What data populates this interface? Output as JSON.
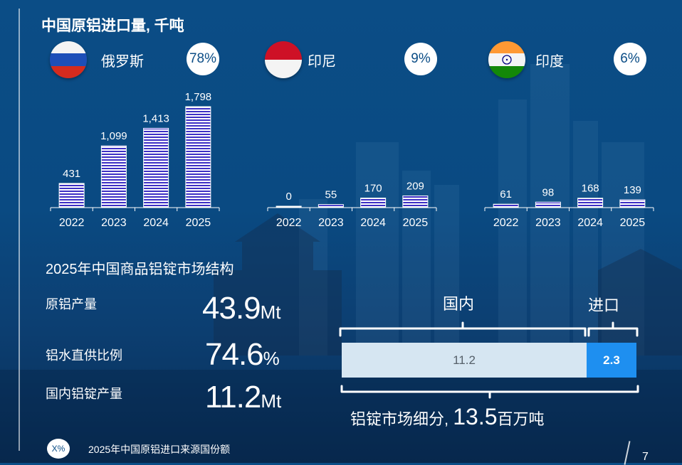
{
  "title": "中国原铝进口量, 千吨",
  "countries": [
    {
      "name": "俄罗斯",
      "share": "78%",
      "flag_colors": [
        "#ffffff",
        "#1d4fb8",
        "#d52b1e"
      ]
    },
    {
      "name": "印尼",
      "share": "9%",
      "flag_colors": [
        "#ce1126",
        "#ffffff"
      ]
    },
    {
      "name": "印度",
      "share": "6%",
      "flag_colors": [
        "#ff9933",
        "#ffffff",
        "#138808"
      ],
      "flag_icon": "ashoka-chakra-icon"
    }
  ],
  "chart_data": [
    {
      "type": "bar",
      "series_of": "俄罗斯",
      "categories": [
        "2022",
        "2023",
        "2024",
        "2025"
      ],
      "values": [
        431,
        1099,
        1413,
        1798
      ],
      "value_labels": [
        "431",
        "1,099",
        "1,413",
        "1,798"
      ],
      "ylim": [
        0,
        1800
      ]
    },
    {
      "type": "bar",
      "series_of": "印尼",
      "categories": [
        "2022",
        "2023",
        "2024",
        "2025"
      ],
      "values": [
        0,
        55,
        170,
        209
      ],
      "value_labels": [
        "0",
        "55",
        "170",
        "209"
      ],
      "ylim": [
        0,
        1800
      ]
    },
    {
      "type": "bar",
      "series_of": "印度",
      "categories": [
        "2022",
        "2023",
        "2024",
        "2025"
      ],
      "values": [
        61,
        98,
        168,
        139
      ],
      "value_labels": [
        "61",
        "98",
        "168",
        "139"
      ],
      "ylim": [
        0,
        1800
      ]
    }
  ],
  "bar_color": "#3d2fc4",
  "market": {
    "title": "2025年中国商品铝锭市场结构",
    "kpis": [
      {
        "label": "原铝产量",
        "value": "43.9",
        "unit": "Mt"
      },
      {
        "label": "铝水直供比例",
        "value": "74.6",
        "unit": "%"
      },
      {
        "label": "国内铝锭产量",
        "value": "11.2",
        "unit": "Mt"
      }
    ],
    "domestic_label": "国内",
    "import_label": "进口",
    "domestic_value": "11.2",
    "import_value": "2.3",
    "domestic_amount": 11.2,
    "import_amount": 2.3,
    "caption_prefix": "铝锭市场细分,",
    "caption_value": "13.5",
    "caption_unit": "百万吨",
    "colors": {
      "domestic": "#d6e6f2",
      "import": "#1e8ff0"
    }
  },
  "legend": {
    "badge": "X%",
    "text": "2025年中国原铝进口来源国份额"
  },
  "page_number": "7"
}
